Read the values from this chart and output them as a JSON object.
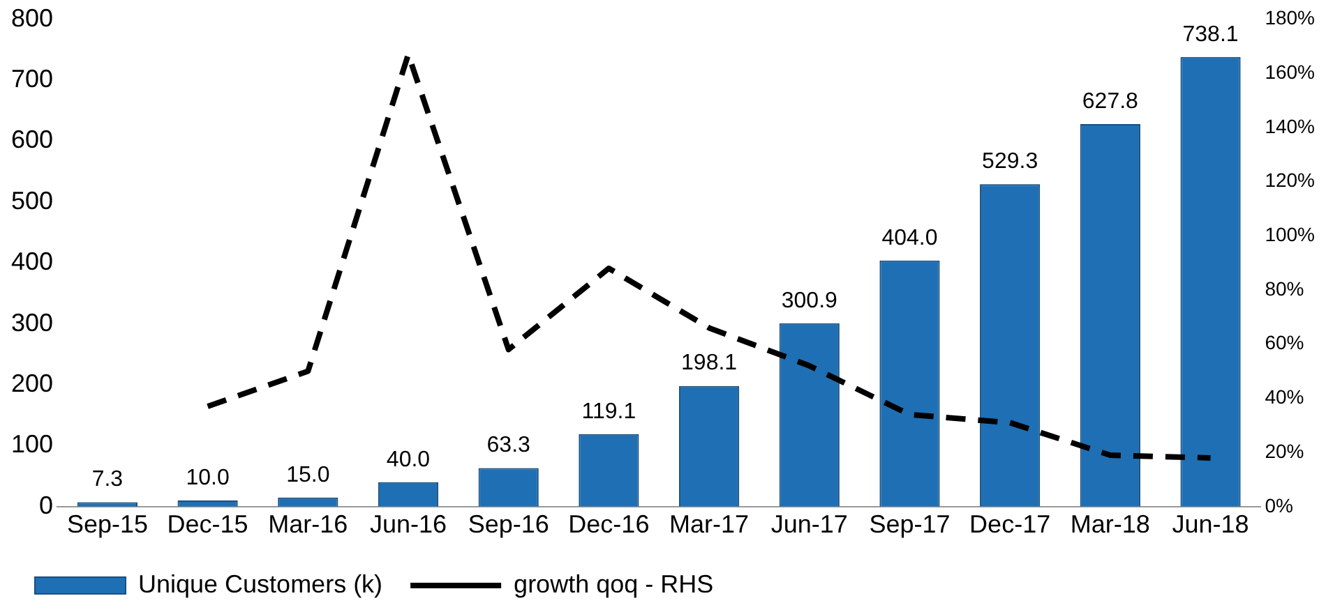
{
  "chart_data": {
    "type": "bar",
    "categories": [
      "Sep-15",
      "Dec-15",
      "Mar-16",
      "Jun-16",
      "Sep-16",
      "Dec-16",
      "Mar-17",
      "Jun-17",
      "Sep-17",
      "Dec-17",
      "Mar-18",
      "Jun-18"
    ],
    "series": [
      {
        "name": "Unique Customers (k)",
        "color": "#1f6fb4",
        "values": [
          7.3,
          10.0,
          15.0,
          40.0,
          63.3,
          119.1,
          198.1,
          300.9,
          404.0,
          529.3,
          627.8,
          738.1
        ],
        "value_labels": [
          "7.3",
          "10.0",
          "15.0",
          "40.0",
          "63.3",
          "119.1",
          "198.1",
          "300.9",
          "404.0",
          "529.3",
          "627.8",
          "738.1"
        ]
      },
      {
        "name": "growth qoq - RHS",
        "type": "line",
        "axis": "y2",
        "color": "#000000",
        "line_style": "dashed",
        "marker": "none",
        "values": [
          null,
          37,
          50,
          167,
          58,
          88,
          66,
          52,
          34,
          31,
          19,
          18
        ]
      }
    ],
    "ylim": [
      0,
      800
    ],
    "yticks": [
      0,
      100,
      200,
      300,
      400,
      500,
      600,
      700,
      800
    ],
    "y2lim": [
      0,
      180
    ],
    "y2ticks": [
      {
        "value": 0,
        "label": "0%"
      },
      {
        "value": 20,
        "label": "20%"
      },
      {
        "value": 40,
        "label": "40%"
      },
      {
        "value": 60,
        "label": "60%"
      },
      {
        "value": 80,
        "label": "80%"
      },
      {
        "value": 100,
        "label": "100%"
      },
      {
        "value": 120,
        "label": "120%"
      },
      {
        "value": 140,
        "label": "140%"
      },
      {
        "value": 160,
        "label": "160%"
      },
      {
        "value": 180,
        "label": "180%"
      }
    ],
    "grid": false,
    "legend": "bottom"
  }
}
